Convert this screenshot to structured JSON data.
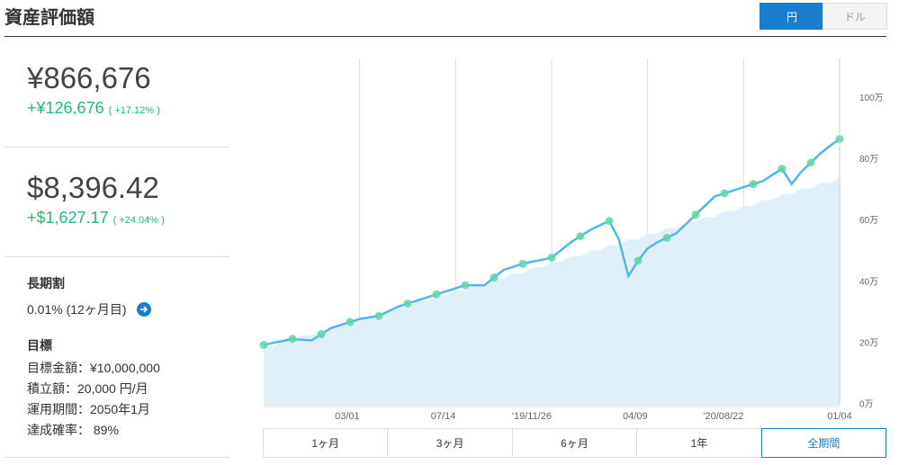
{
  "header": {
    "title": "資産評価額",
    "currency_toggle": [
      "円",
      "ドル"
    ]
  },
  "summary": {
    "jpy": {
      "value": "¥866,676",
      "gain": "+¥126,676",
      "gain_pct": "( +17.12% )"
    },
    "usd": {
      "value": "$8,396.42",
      "gain": "+$1,627.17",
      "gain_pct": "( +24.04% )"
    }
  },
  "discount": {
    "label": "長期割",
    "value": "0.01% (12ヶ月目)"
  },
  "goal": {
    "label": "目標",
    "items": [
      "目標金額：¥10,000,000",
      "積立額：20,000 円/月",
      "運用期間：2050年1月",
      "達成確率： 89%"
    ]
  },
  "periods": [
    "1ヶ月",
    "3ヶ月",
    "6ヶ月",
    "1年",
    "全期間"
  ],
  "chart_data": {
    "type": "line",
    "categories": [
      null,
      null,
      null,
      null,
      null,
      null,
      null,
      null,
      null,
      null,
      "03/01",
      null,
      null,
      null,
      null,
      null,
      null,
      null,
      null,
      null,
      "07/14",
      null,
      null,
      null,
      null,
      null,
      null,
      null,
      null,
      null,
      "'19/11/26",
      null,
      null,
      null,
      null,
      null,
      null,
      null,
      null,
      null,
      "04/09",
      null,
      null,
      null,
      null,
      null,
      null,
      null,
      null,
      null,
      "'20/08/22",
      null,
      null,
      null,
      null,
      null,
      null,
      null,
      null,
      null,
      "01/04"
    ],
    "series": [
      {
        "color": "#dff0fa",
        "style": "area",
        "values": [
          19,
          19,
          20.8,
          20.8,
          22.7,
          22.7,
          24.5,
          24.5,
          26.4,
          26.4,
          28.2,
          28.2,
          30,
          30,
          31.9,
          31.9,
          33.7,
          33.7,
          35.6,
          35.6,
          37.4,
          37.4,
          39.2,
          39.2,
          41.1,
          41.1,
          42.9,
          42.9,
          44.8,
          44.8,
          46.6,
          46.6,
          48.4,
          48.4,
          50.3,
          50.3,
          52.1,
          52.1,
          54,
          54,
          55.8,
          55.8,
          57.6,
          57.6,
          59.5,
          59.5,
          61.3,
          61.3,
          63.2,
          63.2,
          65,
          65,
          66.8,
          66.8,
          68.7,
          68.7,
          70.5,
          70.5,
          72.4,
          72.4,
          74.2
        ]
      },
      {
        "color": "#4fb8e6",
        "marker_color": "#5fd6a4",
        "style": "line",
        "values": [
          19.5,
          20.2,
          20.8,
          21.5,
          21.2,
          21,
          23,
          25,
          26,
          27,
          28,
          28.5,
          29,
          30.5,
          32,
          33,
          34,
          35,
          36,
          37,
          38,
          39,
          39,
          39,
          41.5,
          44,
          45,
          46,
          46.7,
          47.3,
          48,
          50.5,
          53,
          55,
          57,
          58.5,
          60,
          54,
          42,
          47,
          51,
          53,
          54.5,
          56,
          59,
          62,
          65,
          68,
          69,
          70,
          71,
          72,
          73,
          75,
          77,
          72,
          76,
          79,
          82,
          84.5,
          86.7
        ]
      }
    ],
    "ylim": [
      0,
      113
    ],
    "yticks": [
      {
        "value": 0,
        "label": "0万"
      },
      {
        "value": 20,
        "label": "20万"
      },
      {
        "value": 40,
        "label": "40万"
      },
      {
        "value": 60,
        "label": "60万"
      },
      {
        "value": 80,
        "label": "80万"
      },
      {
        "value": 100,
        "label": "100万"
      }
    ],
    "grid": true
  }
}
